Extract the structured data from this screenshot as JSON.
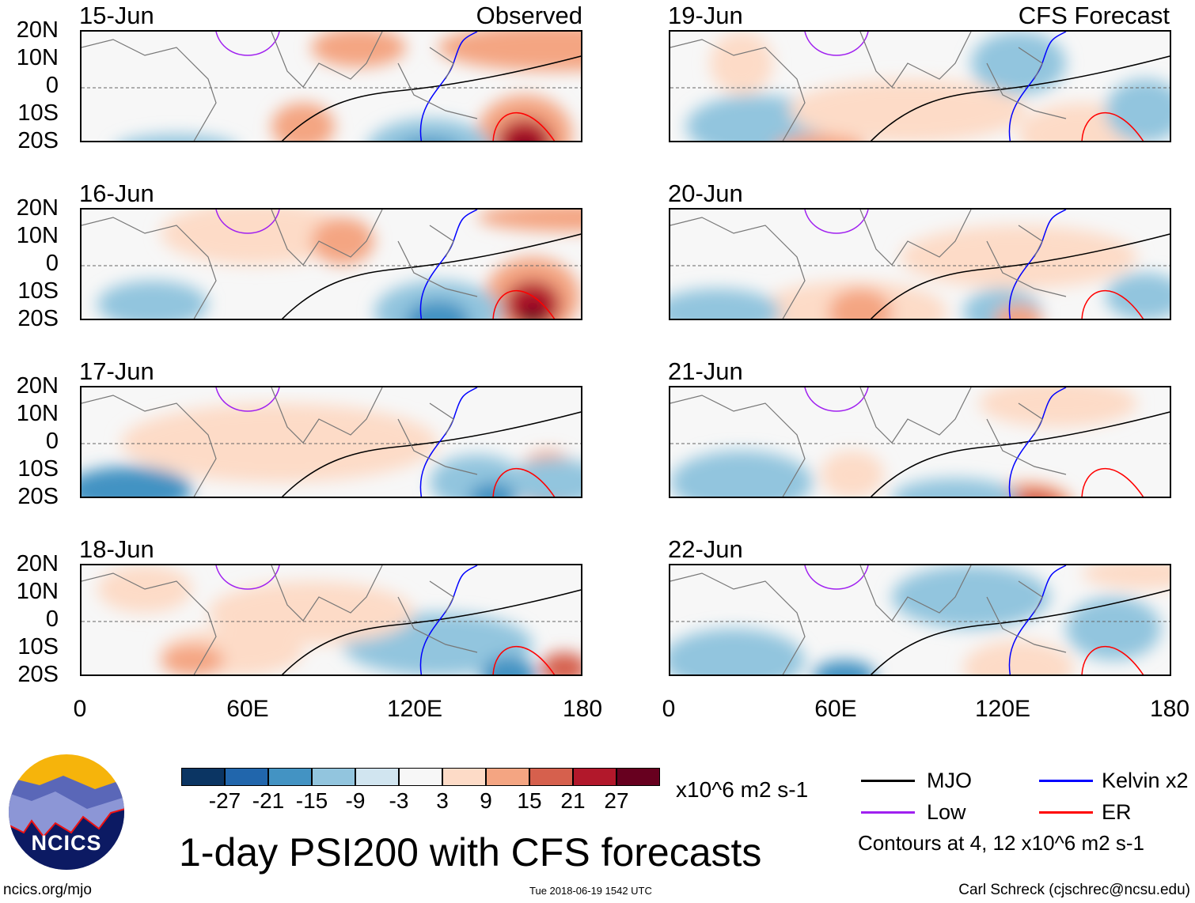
{
  "panels": {
    "left_tag": "Observed",
    "right_tag": "CFS Forecast",
    "left_dates": [
      "15-Jun",
      "16-Jun",
      "17-Jun",
      "18-Jun"
    ],
    "right_dates": [
      "19-Jun",
      "20-Jun",
      "21-Jun",
      "22-Jun"
    ]
  },
  "axes": {
    "lat_labels": [
      "20N",
      "10N",
      "0",
      "10S",
      "20S"
    ],
    "lon_labels": [
      "0",
      "60E",
      "120E",
      "180"
    ]
  },
  "colorbar": {
    "labels": [
      "-27",
      "-21",
      "-15",
      "-9",
      "-3",
      "3",
      "9",
      "15",
      "21",
      "27"
    ],
    "colors": [
      "#0b3563",
      "#2166ac",
      "#4393c3",
      "#92c5de",
      "#d1e5f0",
      "#f7f7f7",
      "#fddbc7",
      "#f4a582",
      "#d6604d",
      "#b2182b",
      "#67001f"
    ],
    "units": "x10^6 m2 s-1"
  },
  "legend": {
    "items": [
      {
        "label": "MJO",
        "color": "#000000"
      },
      {
        "label": "Kelvin x2",
        "color": "#0000ff"
      },
      {
        "label": "Low",
        "color": "#a020f0"
      },
      {
        "label": "ER",
        "color": "#ff0000"
      }
    ],
    "contours_note": "Contours at 4, 12 x10^6 m2 s-1"
  },
  "title": "1-day PSI200 with CFS forecasts",
  "logo_text": "NCICS",
  "footer": {
    "url": "ncics.org/mjo",
    "timestamp": "Tue 2018-06-19 1542 UTC",
    "author": "Carl Schreck (cjschrec@ncsu.edu)"
  }
}
